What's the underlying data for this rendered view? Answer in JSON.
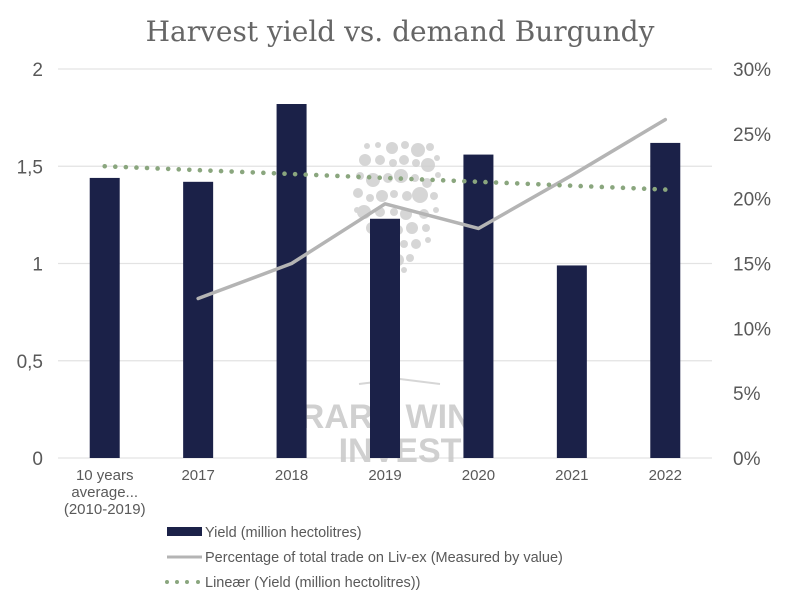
{
  "chart_data": {
    "type": "bar",
    "title": "Harvest yield vs. demand Burgundy",
    "categories": [
      "10 years average... (2010-2019)",
      "2017",
      "2018",
      "2019",
      "2020",
      "2021",
      "2022"
    ],
    "category_lines": [
      [
        "10 years",
        "average...",
        "(2010-2019)"
      ],
      [
        "2017"
      ],
      [
        "2018"
      ],
      [
        "2019"
      ],
      [
        "2020"
      ],
      [
        "2021"
      ],
      [
        "2022"
      ]
    ],
    "series": [
      {
        "name": "Yield (million hectolitres)",
        "type": "bar",
        "axis": "left",
        "color": "#1b2148",
        "values": [
          1.44,
          1.42,
          1.82,
          1.23,
          1.56,
          0.99,
          1.62
        ]
      },
      {
        "name": "Percentage of total trade on Liv-ex (Measured by value)",
        "type": "line",
        "axis": "right",
        "color": "#b4b4b4",
        "values": [
          null,
          12.3,
          15.0,
          19.6,
          17.7,
          21.8,
          26.1
        ]
      },
      {
        "name": "Lineær (Yield (million hectolitres))",
        "type": "trendline",
        "axis": "left",
        "color": "#8aa67e",
        "values": [
          1.5,
          1.48,
          1.46,
          1.44,
          1.42,
          1.4,
          1.38
        ]
      }
    ],
    "y_left": {
      "min": 0,
      "max": 2,
      "ticks": [
        0,
        0.5,
        1,
        1.5,
        2
      ],
      "tick_labels": [
        "0",
        "0,5",
        "1",
        "1,5",
        "2"
      ]
    },
    "y_right": {
      "min": 0,
      "max": 30,
      "ticks": [
        0,
        5,
        10,
        15,
        20,
        25,
        30
      ],
      "tick_labels": [
        "0%",
        "5%",
        "10%",
        "15%",
        "20%",
        "25%",
        "30%"
      ]
    },
    "xlabel": "",
    "ylabel": "",
    "grid": true,
    "legend_position": "bottom"
  },
  "watermark": {
    "line1": "RARE WINE",
    "line2": "INVEST"
  }
}
